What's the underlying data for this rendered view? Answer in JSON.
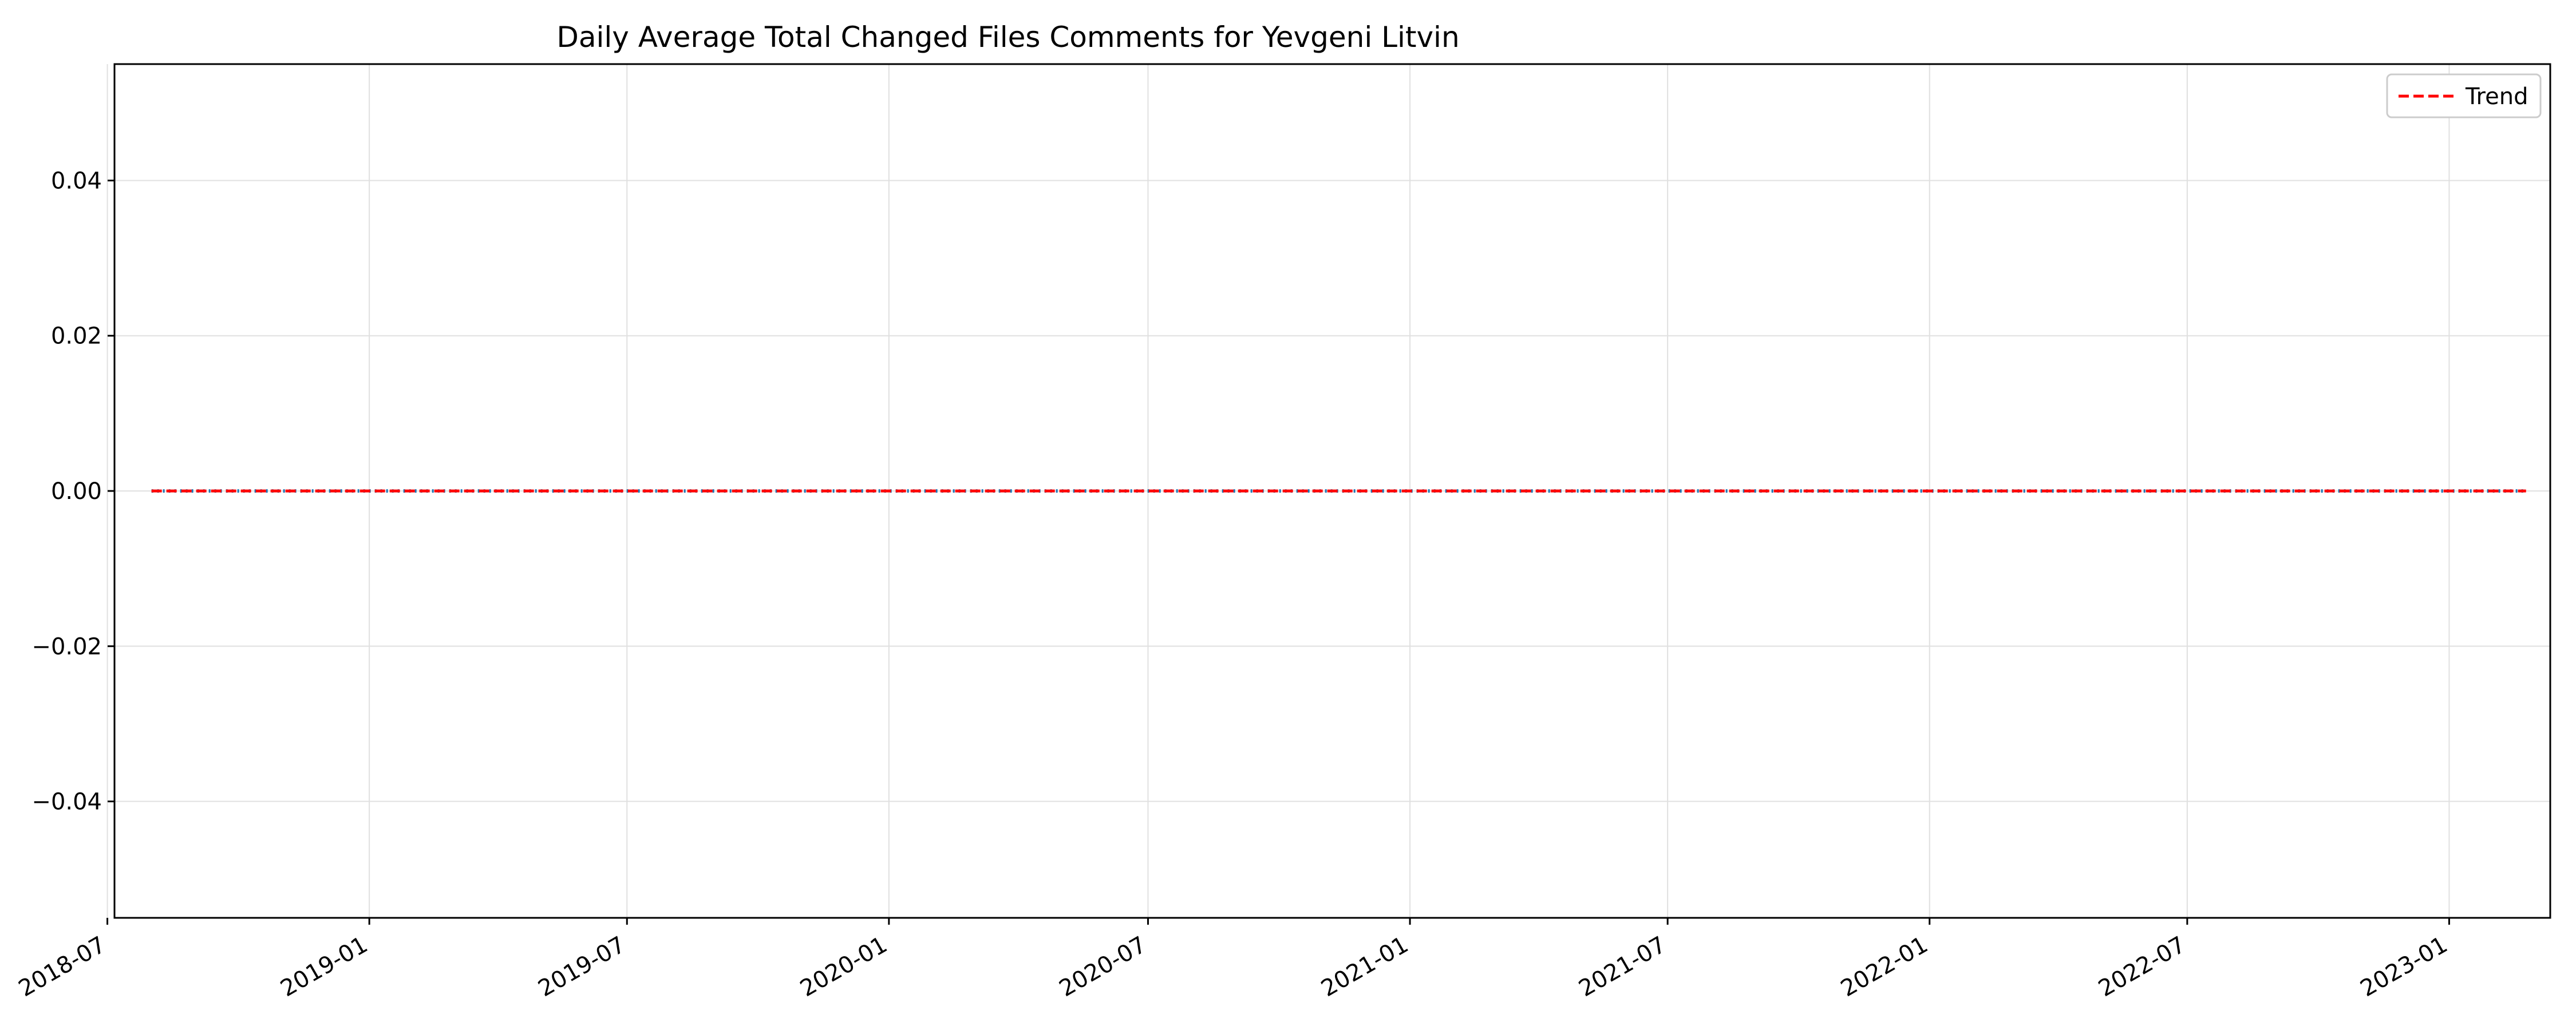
{
  "chart_data": {
    "type": "line",
    "title": "Daily Average Total Changed Files Comments for Yevgeni Litvin",
    "xlabel": "",
    "ylabel": "",
    "x_range": [
      "2018-07-06",
      "2023-03-13"
    ],
    "ylim": [
      -0.055,
      0.055
    ],
    "x_ticks": [
      "2018-07",
      "2019-01",
      "2019-07",
      "2020-01",
      "2020-07",
      "2021-01",
      "2021-07",
      "2022-01",
      "2022-07",
      "2023-01"
    ],
    "y_ticks": [
      "−0.04",
      "−0.02",
      "0.00",
      "0.02",
      "0.04"
    ],
    "y_tick_values": [
      -0.04,
      -0.02,
      0.0,
      0.02,
      0.04
    ],
    "grid": true,
    "legend_position": "top-right",
    "series": [
      {
        "style": "dotted",
        "color": "#1f77b4",
        "x": [
          "2018-08-01",
          "2023-02-24"
        ],
        "values": [
          0.0,
          0.0
        ]
      },
      {
        "name": "Trend",
        "style": "dashed",
        "color": "#ff0000",
        "x": [
          "2018-08-01",
          "2023-02-24"
        ],
        "values": [
          0.0,
          0.0
        ]
      }
    ]
  }
}
